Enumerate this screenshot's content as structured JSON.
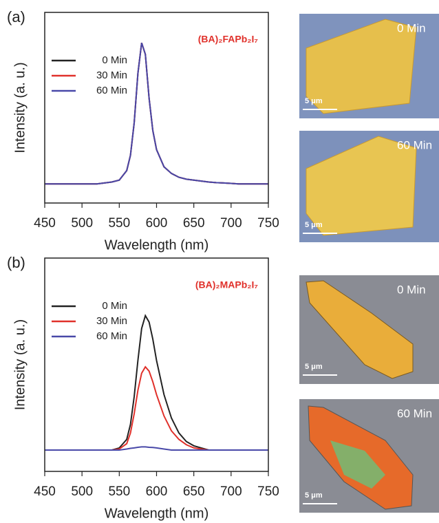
{
  "chart_data": [
    {
      "type": "line",
      "panel_label": "(a)",
      "annotation": "(BA)₂FAPb₂I₇",
      "x_label": "Wavelength (nm)",
      "y_label": "Intensity (a. u.)",
      "xlim": [
        450,
        750
      ],
      "ylim": [
        0,
        1
      ],
      "xticks": [
        450,
        500,
        550,
        600,
        650,
        700,
        750
      ],
      "x": [
        450,
        460,
        470,
        480,
        490,
        500,
        510,
        520,
        530,
        540,
        550,
        560,
        565,
        570,
        575,
        580,
        585,
        590,
        595,
        600,
        610,
        620,
        630,
        640,
        650,
        660,
        670,
        680,
        690,
        700,
        710,
        720,
        730,
        740,
        750
      ],
      "series": [
        {
          "name": "0 Min",
          "color": "#222222",
          "values": [
            0.1,
            0.1,
            0.1,
            0.1,
            0.1,
            0.1,
            0.1,
            0.1,
            0.105,
            0.11,
            0.12,
            0.17,
            0.25,
            0.42,
            0.68,
            0.84,
            0.78,
            0.55,
            0.38,
            0.28,
            0.19,
            0.155,
            0.135,
            0.125,
            0.12,
            0.115,
            0.11,
            0.107,
            0.105,
            0.103,
            0.1,
            0.1,
            0.1,
            0.1,
            0.1
          ]
        },
        {
          "name": "30 Min",
          "color": "#e0302a",
          "values": [
            0.1,
            0.1,
            0.1,
            0.1,
            0.1,
            0.1,
            0.1,
            0.1,
            0.105,
            0.11,
            0.12,
            0.17,
            0.25,
            0.42,
            0.68,
            0.84,
            0.78,
            0.55,
            0.38,
            0.28,
            0.19,
            0.155,
            0.135,
            0.125,
            0.12,
            0.115,
            0.11,
            0.107,
            0.105,
            0.103,
            0.1,
            0.1,
            0.1,
            0.1,
            0.1
          ]
        },
        {
          "name": "60 Min",
          "color": "#4848a8",
          "values": [
            0.1,
            0.1,
            0.1,
            0.1,
            0.1,
            0.1,
            0.1,
            0.1,
            0.105,
            0.11,
            0.12,
            0.17,
            0.25,
            0.42,
            0.68,
            0.84,
            0.78,
            0.55,
            0.38,
            0.28,
            0.19,
            0.155,
            0.135,
            0.125,
            0.12,
            0.115,
            0.11,
            0.107,
            0.105,
            0.103,
            0.1,
            0.1,
            0.1,
            0.1,
            0.1
          ]
        }
      ]
    },
    {
      "type": "line",
      "panel_label": "(b)",
      "annotation": "(BA)₂MAPb₂I₇",
      "x_label": "Wavelength (nm)",
      "y_label": "Intensity (a. u.)",
      "xlim": [
        450,
        750
      ],
      "ylim": [
        0,
        1
      ],
      "xticks": [
        450,
        500,
        550,
        600,
        650,
        700,
        750
      ],
      "x": [
        450,
        460,
        470,
        480,
        490,
        500,
        510,
        520,
        530,
        540,
        550,
        560,
        565,
        570,
        575,
        580,
        585,
        590,
        595,
        600,
        610,
        620,
        630,
        640,
        650,
        660,
        670,
        680,
        690,
        700,
        710,
        720,
        730,
        740,
        750
      ],
      "series": [
        {
          "name": "0 Min",
          "color": "#222222",
          "values": [
            0.1,
            0.1,
            0.1,
            0.1,
            0.1,
            0.1,
            0.1,
            0.1,
            0.1,
            0.1,
            0.11,
            0.15,
            0.22,
            0.35,
            0.52,
            0.67,
            0.73,
            0.7,
            0.62,
            0.52,
            0.36,
            0.25,
            0.18,
            0.14,
            0.12,
            0.11,
            0.1,
            0.1,
            0.1,
            0.1,
            0.1,
            0.1,
            0.1,
            0.1,
            0.1
          ]
        },
        {
          "name": "30 Min",
          "color": "#e0302a",
          "values": [
            0.1,
            0.1,
            0.1,
            0.1,
            0.1,
            0.1,
            0.1,
            0.1,
            0.1,
            0.1,
            0.105,
            0.13,
            0.18,
            0.27,
            0.38,
            0.46,
            0.49,
            0.47,
            0.42,
            0.36,
            0.26,
            0.19,
            0.15,
            0.125,
            0.11,
            0.105,
            0.1,
            0.1,
            0.1,
            0.1,
            0.1,
            0.1,
            0.1,
            0.1,
            0.1
          ]
        },
        {
          "name": "60 Min",
          "color": "#4848a8",
          "values": [
            0.1,
            0.1,
            0.1,
            0.1,
            0.1,
            0.1,
            0.1,
            0.1,
            0.1,
            0.1,
            0.1,
            0.105,
            0.108,
            0.11,
            0.113,
            0.115,
            0.115,
            0.113,
            0.112,
            0.11,
            0.105,
            0.1,
            0.1,
            0.1,
            0.1,
            0.1,
            0.1,
            0.1,
            0.1,
            0.1,
            0.1,
            0.1,
            0.1,
            0.1,
            0.1
          ]
        }
      ]
    }
  ],
  "images": [
    {
      "label": "0 Min",
      "scale": "5 μm"
    },
    {
      "label": "60 Min",
      "scale": "5 μm"
    },
    {
      "label": "0 Min",
      "scale": "5 μm"
    },
    {
      "label": "60 Min",
      "scale": "5 μm"
    }
  ]
}
